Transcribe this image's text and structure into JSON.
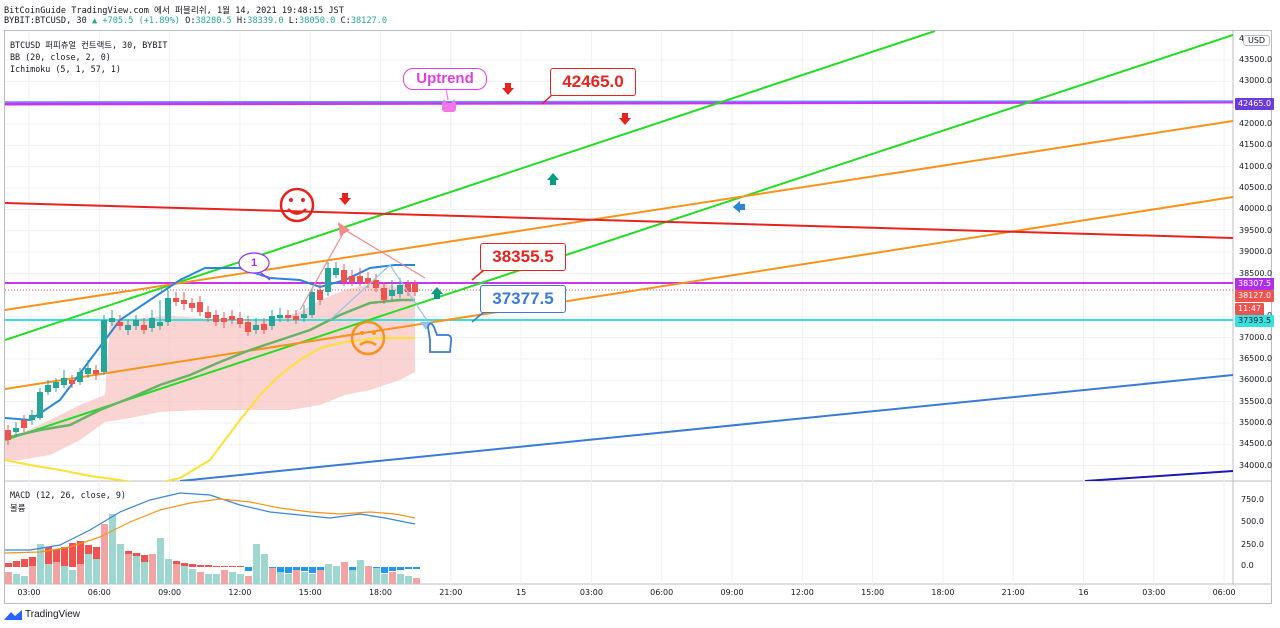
{
  "header": {
    "line1": "BitCoinGuide TradingView.com 에서 퍼블리쉬, 1월 14, 2021 19:48:15 JST",
    "symbol_tf": "BYBIT:BTCUSD, 30",
    "change": "+705.5 (+1.89%)",
    "o_label": "O:",
    "o_value": "38280.5",
    "h_label": "H:",
    "h_value": "38339.0",
    "l_label": "L:",
    "l_value": "38050.0",
    "c_label": "C:",
    "c_value": "38127.0"
  },
  "legend": {
    "title": "BTCUSD 퍼피츄얼 컨트랙트, 30, BYBIT",
    "bb": "BB (20, close, 2, 0)",
    "ichimoku": "Ichimoku (5, 1, 57, 1)",
    "macd": "MACD (12, 26, close, 9)",
    "macd_sub": "볼륨"
  },
  "price_axis": {
    "currency": "USD",
    "ticks": [
      "43500.0",
      "43000.0",
      "42500.0",
      "42000.0",
      "41500.0",
      "41000.0",
      "40500.0",
      "40000.0",
      "39500.0",
      "39000.0",
      "38500.0",
      "38000.0",
      "37500.0",
      "37000.0",
      "36500.0",
      "36000.0",
      "35500.0",
      "35000.0",
      "34500.0",
      "34000.0"
    ],
    "top_clipped": "4"
  },
  "macd_axis": {
    "ticks": [
      "750.0",
      "500.0",
      "250.0",
      "0.0"
    ]
  },
  "time_axis": {
    "ticks": [
      "03:00",
      "06:00",
      "09:00",
      "12:00",
      "15:00",
      "18:00",
      "21:00",
      "15",
      "03:00",
      "06:00",
      "09:00",
      "12:00",
      "15:00",
      "18:00",
      "21:00",
      "16",
      "03:00",
      "06:00"
    ]
  },
  "price_tags": {
    "level1": "42465.0",
    "level2": "38307.5",
    "last": "38127.0",
    "countdown": "11:47",
    "level3": "37393.5"
  },
  "annotations": {
    "uptrend": "Uptrend",
    "callout_high": "42465.0",
    "callout_mid": "38355.5",
    "callout_low": "37377.5",
    "bubble_number": "1"
  },
  "colors": {
    "up": "#26a69a",
    "down": "#ef5350",
    "trend_green": "#22dd22",
    "trend_orange": "#f7931a",
    "trend_red": "#e8231d",
    "trend_blue": "#3a7bd5",
    "level_purple": "#cc33ee",
    "level_cyan": "#35e0e0",
    "callout_red": "#e8231d",
    "callout_blue": "#3a7bd5"
  },
  "footer": {
    "brand": "TradingView"
  }
}
